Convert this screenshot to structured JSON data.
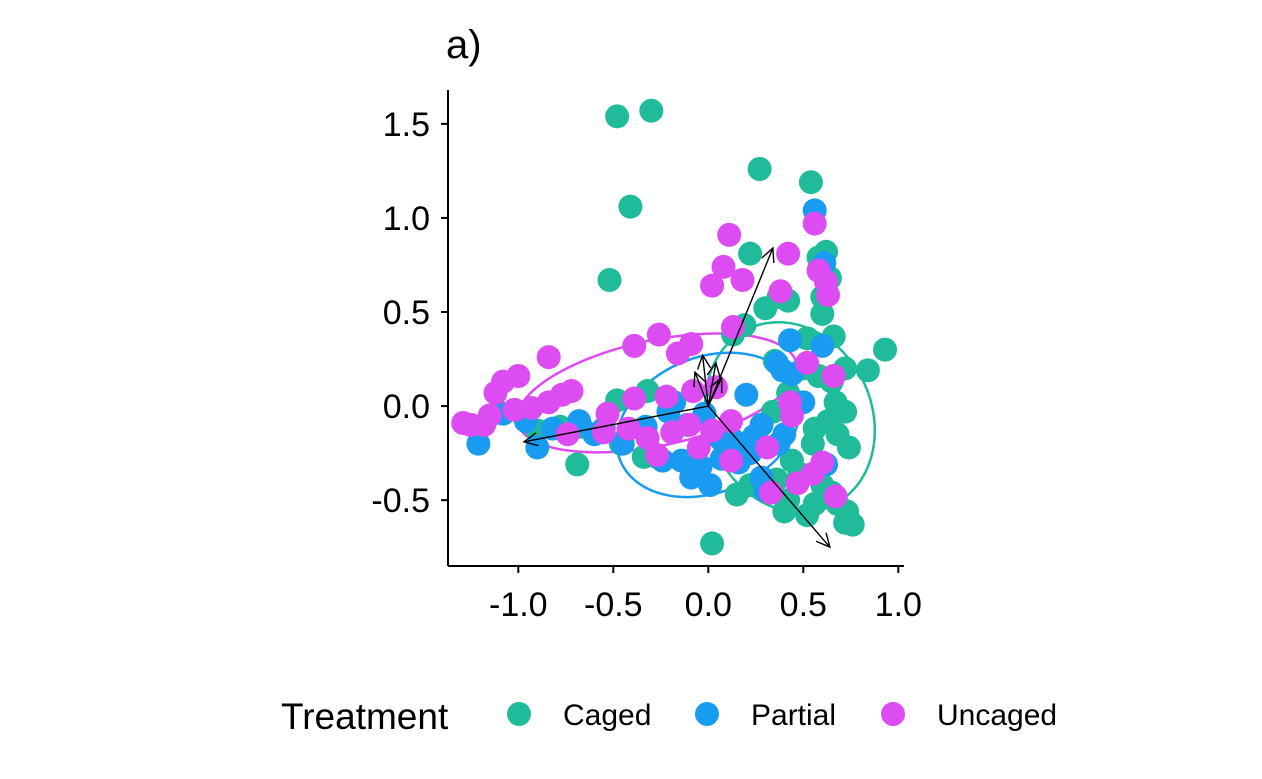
{
  "chart_data": {
    "type": "scatter",
    "title": "a)",
    "xlabel": "",
    "ylabel": "",
    "xlim": [
      -1.37,
      1.03
    ],
    "ylim": [
      -0.85,
      1.68
    ],
    "x_ticks": [
      -1.0,
      -0.5,
      0.0,
      0.5,
      1.0
    ],
    "x_tick_labels": [
      "-1.0",
      "-0.5",
      "0.0",
      "0.5",
      "1.0"
    ],
    "y_ticks": [
      -0.5,
      0.0,
      0.5,
      1.0,
      1.5
    ],
    "y_tick_labels": [
      "-0.5",
      "0.0",
      "0.5",
      "1.0",
      "1.5"
    ],
    "grid": false,
    "legend": {
      "title": "Treatment",
      "position": "bottom",
      "entries": [
        "Caged",
        "Partial",
        "Uncaged"
      ]
    },
    "series": [
      {
        "name": "Caged",
        "color": "#1fbb9b",
        "points": [
          [
            -0.48,
            1.54
          ],
          [
            -0.3,
            1.57
          ],
          [
            0.27,
            1.26
          ],
          [
            0.54,
            1.19
          ],
          [
            -0.41,
            1.06
          ],
          [
            -0.52,
            0.67
          ],
          [
            0.22,
            0.81
          ],
          [
            0.62,
            0.82
          ],
          [
            0.58,
            0.79
          ],
          [
            0.64,
            0.68
          ],
          [
            0.6,
            0.58
          ],
          [
            0.42,
            0.56
          ],
          [
            0.3,
            0.52
          ],
          [
            0.37,
            0.58
          ],
          [
            0.13,
            0.38
          ],
          [
            0.19,
            0.43
          ],
          [
            0.6,
            0.49
          ],
          [
            0.52,
            0.36
          ],
          [
            0.66,
            0.37
          ],
          [
            0.93,
            0.3
          ],
          [
            0.84,
            0.19
          ],
          [
            0.72,
            0.2
          ],
          [
            0.58,
            0.16
          ],
          [
            0.65,
            0.13
          ],
          [
            0.35,
            0.24
          ],
          [
            0.5,
            0.2
          ],
          [
            0.67,
            0.02
          ],
          [
            0.72,
            -0.03
          ],
          [
            0.63,
            -0.08
          ],
          [
            0.56,
            -0.12
          ],
          [
            0.68,
            -0.15
          ],
          [
            0.74,
            -0.22
          ],
          [
            0.55,
            -0.2
          ],
          [
            0.44,
            -0.29
          ],
          [
            0.48,
            -0.36
          ],
          [
            0.6,
            -0.42
          ],
          [
            0.65,
            -0.46
          ],
          [
            0.68,
            -0.52
          ],
          [
            0.56,
            -0.52
          ],
          [
            0.52,
            -0.58
          ],
          [
            0.73,
            -0.56
          ],
          [
            0.76,
            -0.63
          ],
          [
            0.72,
            -0.62
          ],
          [
            0.42,
            -0.5
          ],
          [
            0.4,
            -0.56
          ],
          [
            0.15,
            -0.47
          ],
          [
            0.22,
            -0.42
          ],
          [
            0.36,
            -0.39
          ],
          [
            0.02,
            -0.73
          ],
          [
            -0.34,
            -0.27
          ],
          [
            -0.69,
            -0.31
          ],
          [
            -0.67,
            -0.11
          ],
          [
            -0.46,
            -0.2
          ],
          [
            -0.27,
            -0.27
          ],
          [
            -0.9,
            -0.13
          ],
          [
            -0.78,
            -0.11
          ],
          [
            -0.32,
            0.08
          ],
          [
            -0.48,
            0.03
          ],
          [
            0.34,
            -0.03
          ],
          [
            0.42,
            0.07
          ]
        ]
      },
      {
        "name": "Partial",
        "color": "#1a9bf2",
        "points": [
          [
            0.56,
            1.04
          ],
          [
            0.61,
            0.76
          ],
          [
            0.6,
            0.32
          ],
          [
            0.43,
            0.35
          ],
          [
            0.44,
            0.17
          ],
          [
            0.39,
            0.19
          ],
          [
            0.36,
            0.23
          ],
          [
            0.62,
            -0.31
          ],
          [
            0.4,
            -0.15
          ],
          [
            0.37,
            -0.2
          ],
          [
            0.28,
            -0.38
          ],
          [
            0.13,
            -0.18
          ],
          [
            0.07,
            -0.28
          ],
          [
            0.01,
            -0.42
          ],
          [
            -0.04,
            -0.32
          ],
          [
            -0.09,
            -0.38
          ],
          [
            -0.14,
            -0.29
          ],
          [
            -0.24,
            -0.29
          ],
          [
            -0.11,
            -0.1
          ],
          [
            -0.45,
            -0.2
          ],
          [
            -0.55,
            -0.12
          ],
          [
            -0.68,
            -0.08
          ],
          [
            -0.9,
            -0.22
          ],
          [
            -1.21,
            -0.2
          ],
          [
            -0.96,
            -0.08
          ],
          [
            -1.08,
            -0.04
          ],
          [
            -0.82,
            -0.12
          ],
          [
            -0.6,
            -0.15
          ],
          [
            0.28,
            -0.1
          ],
          [
            0.22,
            -0.25
          ],
          [
            0.06,
            -0.17
          ],
          [
            -0.02,
            -0.04
          ],
          [
            0.5,
            0.02
          ],
          [
            0.3,
            -0.45
          ],
          [
            0.16,
            -0.3
          ],
          [
            -0.33,
            -0.11
          ],
          [
            -0.21,
            -0.03
          ],
          [
            -0.18,
            0.02
          ],
          [
            0.2,
            0.06
          ],
          [
            0.24,
            -0.16
          ]
        ]
      },
      {
        "name": "Uncaged",
        "color": "#dd4cf2",
        "points": [
          [
            0.56,
            0.97
          ],
          [
            0.11,
            0.91
          ],
          [
            0.42,
            0.81
          ],
          [
            0.58,
            0.72
          ],
          [
            0.62,
            0.66
          ],
          [
            0.08,
            0.74
          ],
          [
            0.18,
            0.67
          ],
          [
            0.38,
            0.61
          ],
          [
            0.63,
            0.59
          ],
          [
            0.02,
            0.64
          ],
          [
            -0.26,
            0.38
          ],
          [
            -0.39,
            0.32
          ],
          [
            0.13,
            0.42
          ],
          [
            -0.09,
            0.33
          ],
          [
            -0.16,
            0.28
          ],
          [
            -0.84,
            0.26
          ],
          [
            -1.0,
            0.16
          ],
          [
            -1.08,
            0.13
          ],
          [
            -1.12,
            0.07
          ],
          [
            -0.72,
            0.08
          ],
          [
            -0.77,
            0.06
          ],
          [
            -0.84,
            0.02
          ],
          [
            -0.93,
            -0.01
          ],
          [
            -1.02,
            -0.02
          ],
          [
            -1.15,
            -0.05
          ],
          [
            -1.25,
            -0.1
          ],
          [
            -1.29,
            -0.09
          ],
          [
            -1.18,
            -0.1
          ],
          [
            -0.74,
            -0.15
          ],
          [
            -0.55,
            -0.14
          ],
          [
            -0.42,
            -0.12
          ],
          [
            -0.32,
            -0.17
          ],
          [
            -0.27,
            -0.26
          ],
          [
            -0.19,
            -0.14
          ],
          [
            -0.05,
            -0.22
          ],
          [
            -0.1,
            -0.1
          ],
          [
            -0.08,
            0.08
          ],
          [
            -0.22,
            0.05
          ],
          [
            -0.39,
            0.04
          ],
          [
            -0.53,
            -0.04
          ],
          [
            0.04,
            0.1
          ],
          [
            0.12,
            -0.08
          ],
          [
            0.43,
            0.02
          ],
          [
            0.44,
            -0.05
          ],
          [
            0.66,
            0.16
          ],
          [
            0.52,
            0.23
          ],
          [
            0.47,
            -0.41
          ],
          [
            0.33,
            -0.46
          ],
          [
            0.12,
            -0.29
          ],
          [
            0.55,
            -0.36
          ],
          [
            0.67,
            -0.48
          ],
          [
            0.02,
            -0.13
          ],
          [
            0.31,
            -0.22
          ],
          [
            0.6,
            -0.3
          ]
        ]
      }
    ],
    "ellipses": [
      {
        "series": "Caged",
        "cx": 0.43,
        "cy": -0.06,
        "rx": 0.43,
        "ry": 0.52,
        "rotate": -25
      },
      {
        "series": "Partial",
        "cx": 0.0,
        "cy": -0.1,
        "rx": 0.5,
        "ry": 0.36,
        "rotate": -22
      },
      {
        "series": "Uncaged",
        "cx": -0.27,
        "cy": 0.07,
        "rx": 0.75,
        "ry": 0.28,
        "rotate": -12
      }
    ],
    "vectors": [
      {
        "x": 0.34,
        "y": 0.84
      },
      {
        "x": 0.64,
        "y": -0.75
      },
      {
        "x": -0.97,
        "y": -0.19
      },
      {
        "x": -0.03,
        "y": 0.27
      },
      {
        "x": 0.04,
        "y": 0.23
      },
      {
        "x": -0.07,
        "y": 0.18
      },
      {
        "x": 0.07,
        "y": 0.15
      }
    ]
  }
}
